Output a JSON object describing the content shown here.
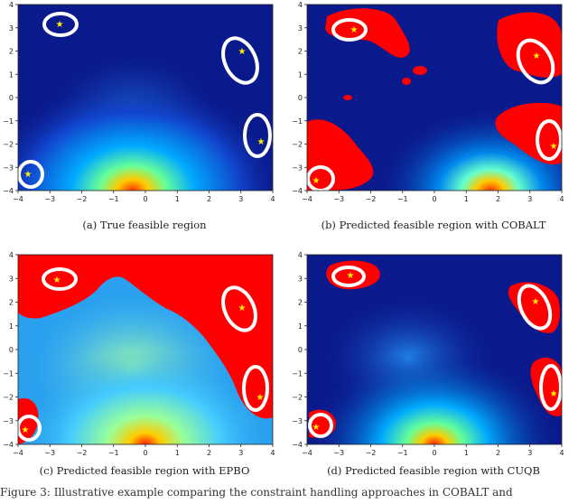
{
  "figure": {
    "panels": [
      {
        "id": "a",
        "caption": "(a)  True feasible region"
      },
      {
        "id": "b",
        "caption": "(b)  Predicted feasible region with COBALT"
      },
      {
        "id": "c",
        "caption": "(c)  Predicted feasible region with EPBO"
      },
      {
        "id": "d",
        "caption": "(d)  Predicted feasible region with CUQB"
      }
    ],
    "axis": {
      "x_ticks": [
        "−4",
        "−3",
        "−2",
        "−1",
        "0",
        "1",
        "2",
        "3",
        "4"
      ],
      "y_ticks": [
        "4",
        "3",
        "2",
        "1",
        "0",
        "−1",
        "−2",
        "−3",
        "−4"
      ]
    },
    "footer_text": "Figure 3: Illustrative example comparing the constraint handling approaches in COBALT and"
  },
  "colors": {
    "background_dark": "#0a1a8c",
    "feasible_region": "#ff0000",
    "ring": "#ffffff",
    "star": "#ffee00"
  }
}
